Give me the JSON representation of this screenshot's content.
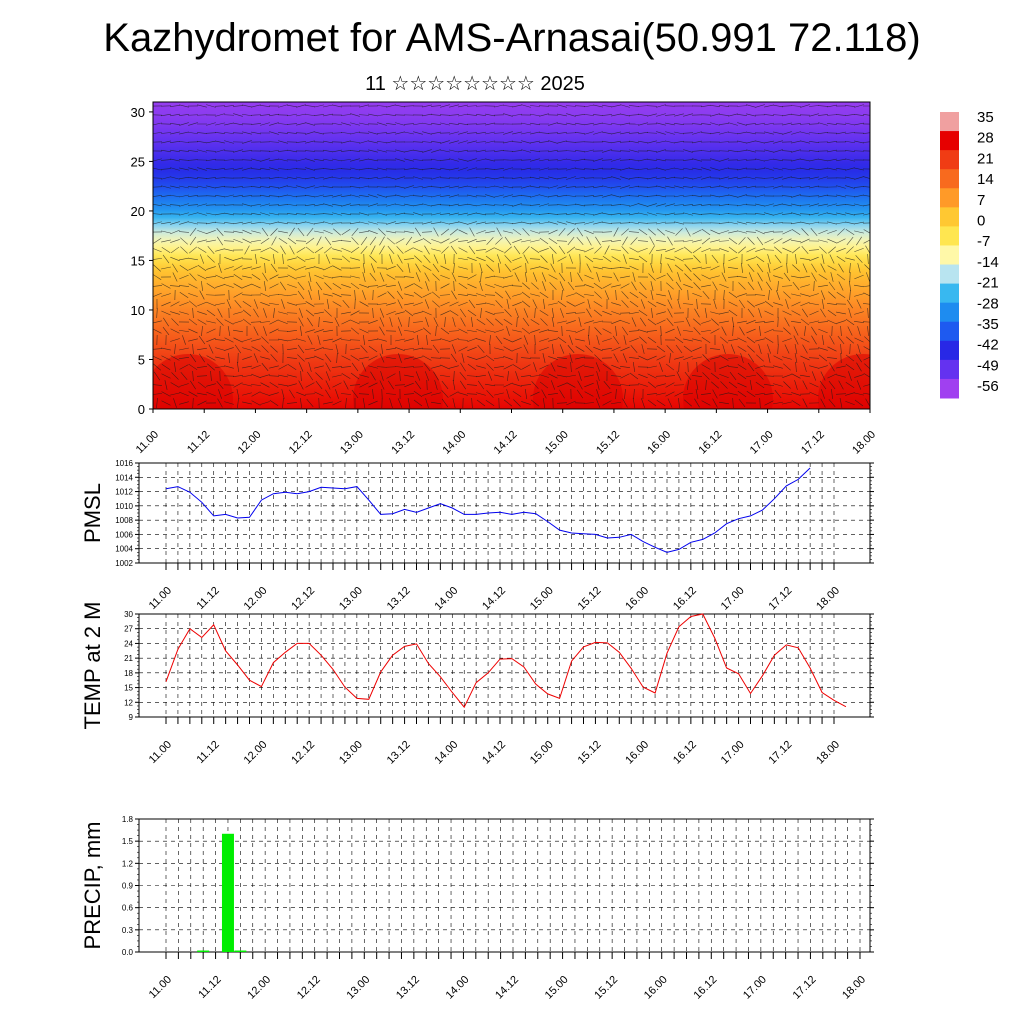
{
  "page": {
    "title": "Kazhydromet for AMS-Arnasai(50.991 72.118)",
    "subtitle": "11 ☆☆☆☆☆☆☆☆ 2025"
  },
  "chart_data": [
    {
      "type": "heatmap",
      "title": "",
      "ylabel": "",
      "x_labels": [
        "11.00",
        "11.12",
        "12.00",
        "12.12",
        "13.00",
        "13.12",
        "14.00",
        "14.12",
        "15.00",
        "15.12",
        "16.00",
        "16.12",
        "17.00",
        "17.12",
        "18.00"
      ],
      "y_ticks": [
        0,
        5,
        10,
        15,
        20,
        25,
        30
      ],
      "ylim": [
        0,
        31
      ],
      "colorbar": {
        "labels": [
          "35",
          "28",
          "21",
          "14",
          "7",
          "0",
          "-7",
          "-14",
          "-21",
          "-28",
          "-35",
          "-42",
          "-49",
          "-56"
        ],
        "colors": [
          "#f0a0a0",
          "#e60000",
          "#f03c14",
          "#f86a1e",
          "#ff9a28",
          "#ffc832",
          "#ffe650",
          "#fff8a8",
          "#b8e4f0",
          "#38b8f0",
          "#1e8cf0",
          "#1e5af0",
          "#2828e6",
          "#6432f0",
          "#a040f0"
        ]
      },
      "temperature_profile": {
        "heights": [
          0,
          5,
          10,
          14,
          16,
          18,
          20,
          23,
          26,
          29,
          31
        ],
        "values": [
          28,
          22,
          12,
          3,
          -7,
          -16,
          -28,
          -40,
          -47,
          -53,
          -55
        ]
      },
      "wind_vectors": "shown"
    },
    {
      "type": "line",
      "ylabel": "PMSL",
      "ylim": [
        1002,
        1016
      ],
      "y_ticks": [
        1002,
        1004,
        1006,
        1008,
        1010,
        1012,
        1014,
        1016
      ],
      "x_labels": [
        "11.00",
        "11.12",
        "12.00",
        "12.12",
        "13.00",
        "13.12",
        "14.00",
        "14.12",
        "15.00",
        "15.12",
        "16.00",
        "16.12",
        "17.00",
        "17.12",
        "18.00"
      ],
      "x_step_hours": 3,
      "color": "#0000ee",
      "values": [
        1012.4,
        1012.7,
        1011.9,
        1010.5,
        1008.6,
        1008.8,
        1008.3,
        1008.4,
        1010.8,
        1011.7,
        1011.9,
        1011.7,
        1012.0,
        1012.6,
        1012.5,
        1012.4,
        1012.7,
        1010.8,
        1008.8,
        1008.9,
        1009.5,
        1009.1,
        1009.7,
        1010.3,
        1009.7,
        1008.8,
        1008.8,
        1009.0,
        1009.1,
        1008.8,
        1009.1,
        1008.9,
        1007.8,
        1006.6,
        1006.2,
        1006.1,
        1006.0,
        1005.5,
        1005.6,
        1006.0,
        1005.0,
        1004.2,
        1003.5,
        1003.9,
        1004.9,
        1005.3,
        1006.2,
        1007.5,
        1008.2,
        1008.6,
        1009.4,
        1011.0,
        1012.8,
        1013.7,
        1015.3
      ]
    },
    {
      "type": "line",
      "ylabel": "TEMP at 2 M",
      "ylim": [
        9,
        30
      ],
      "y_ticks": [
        9,
        12,
        15,
        18,
        21,
        24,
        27,
        30
      ],
      "x_labels": [
        "11.00",
        "11.12",
        "12.00",
        "12.12",
        "13.00",
        "13.12",
        "14.00",
        "14.12",
        "15.00",
        "15.12",
        "16.00",
        "16.12",
        "17.00",
        "17.12",
        "18.00"
      ],
      "x_step_hours": 3,
      "color": "#ee0000",
      "values": [
        16.2,
        22.8,
        27.0,
        25.2,
        27.8,
        22.5,
        19.6,
        16.5,
        15.2,
        20.1,
        22.2,
        24.0,
        24.0,
        21.6,
        18.7,
        15.1,
        12.8,
        12.6,
        18.2,
        21.6,
        23.4,
        23.9,
        19.9,
        17.2,
        14.0,
        11.0,
        16.0,
        18.0,
        20.8,
        20.9,
        19.2,
        15.7,
        13.7,
        12.8,
        20.4,
        23.3,
        24.2,
        24.1,
        22.2,
        18.9,
        15.1,
        13.9,
        22.0,
        27.4,
        29.5,
        30.0,
        25.1,
        19.0,
        17.8,
        13.8,
        17.4,
        21.6,
        23.7,
        23.1,
        19.0,
        14.0,
        12.4,
        11.1
      ]
    },
    {
      "type": "bar",
      "ylabel": "PRECIP, mm",
      "ylim": [
        0,
        1.8
      ],
      "y_ticks": [
        "0.0",
        "0.3",
        "0.6",
        "0.9",
        "1.2",
        "1.5",
        "1.8"
      ],
      "x_labels": [
        "11.00",
        "11.12",
        "12.00",
        "12.12",
        "13.00",
        "13.12",
        "14.00",
        "14.12",
        "15.00",
        "15.12",
        "16.00",
        "16.12",
        "17.00",
        "17.12",
        "18.00"
      ],
      "color": "#00ee00",
      "bars": [
        {
          "hour": 9,
          "value": 0.02
        },
        {
          "hour": 15,
          "value": 1.6
        },
        {
          "hour": 18,
          "value": 0.02
        }
      ]
    }
  ]
}
